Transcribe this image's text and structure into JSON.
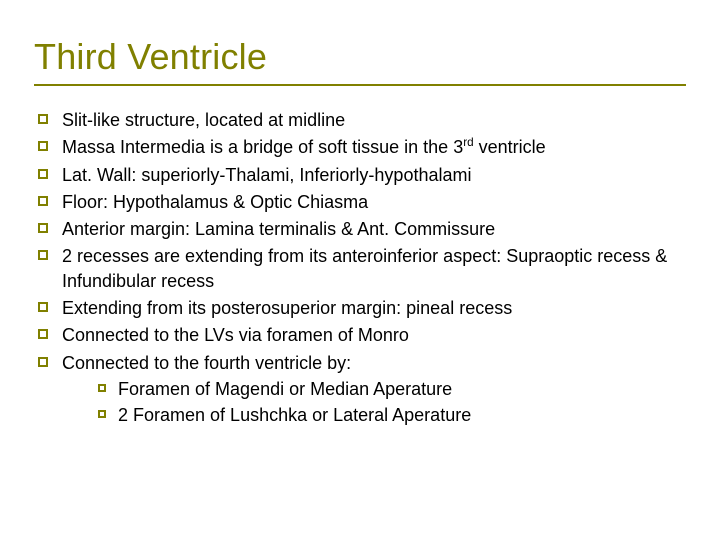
{
  "colors": {
    "accent": "#808000",
    "text": "#000000",
    "background": "#ffffff"
  },
  "typography": {
    "title_fontsize": 36,
    "body_fontsize": 18,
    "font_family": "Verdana"
  },
  "title": "Third Ventricle",
  "bullets": [
    {
      "text": "Slit-like structure, located at midline"
    },
    {
      "text_pre": "Massa Intermedia is a bridge of soft tissue in the 3",
      "sup": "rd",
      "text_post": " ventricle"
    },
    {
      "text": "Lat. Wall: superiorly-Thalami, Inferiorly-hypothalami"
    },
    {
      "text": "Floor: Hypothalamus & Optic Chiasma"
    },
    {
      "text": "Anterior margin: Lamina terminalis & Ant. Commissure"
    },
    {
      "text": "2 recesses are extending from its anteroinferior aspect: Supraoptic recess & Infundibular recess"
    },
    {
      "text": "Extending from its posterosuperior  margin: pineal recess"
    },
    {
      "text": "Connected to the LVs via foramen of Monro"
    },
    {
      "text": "Connected to the fourth ventricle by:",
      "children": [
        "Foramen of Magendi or Median Aperature",
        "2 Foramen of Lushchka or Lateral Aperature"
      ]
    }
  ]
}
